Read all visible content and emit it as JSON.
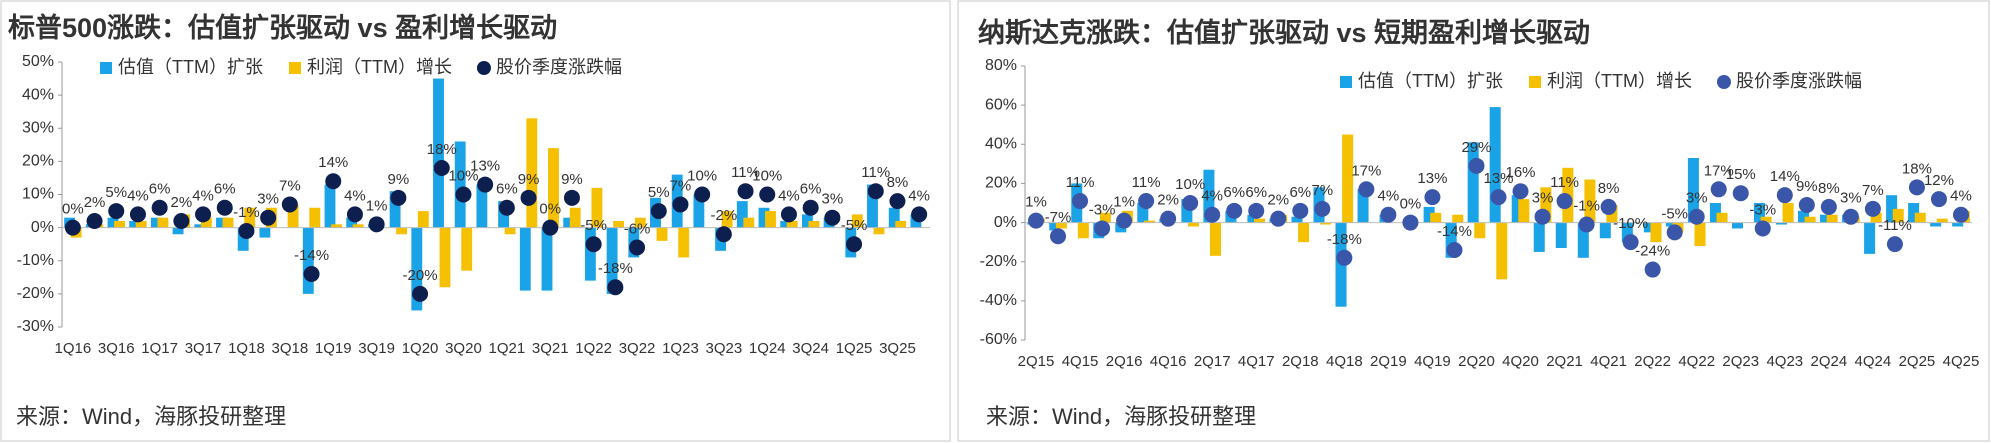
{
  "chart_data": [
    {
      "type": "bar",
      "title": "标普500涨跌：估值扩张驱动 vs 盈利增长驱动",
      "source": "来源：Wind，海豚投研整理",
      "categories": [
        "1Q16",
        null,
        "3Q16",
        null,
        "1Q17",
        null,
        "3Q17",
        null,
        "1Q18",
        null,
        "3Q18",
        null,
        "1Q19",
        null,
        "3Q19",
        null,
        "1Q20",
        null,
        "3Q20",
        null,
        "1Q21",
        null,
        "3Q21",
        null,
        "1Q22",
        null,
        "3Q22",
        null,
        "1Q23",
        null,
        "3Q23",
        null,
        "1Q24",
        null,
        "3Q24",
        null,
        "1Q25",
        null,
        "3Q25",
        null
      ],
      "ylim": [
        -30,
        50
      ],
      "yticks": [
        {
          "value": -30,
          "label": "-30%"
        },
        {
          "value": -20,
          "label": "-20%"
        },
        {
          "value": -10,
          "label": "-10%"
        },
        {
          "value": 0,
          "label": "0%"
        },
        {
          "value": 10,
          "label": "10%"
        },
        {
          "value": 20,
          "label": "20%"
        },
        {
          "value": 30,
          "label": "30%"
        },
        {
          "value": 40,
          "label": "40%"
        },
        {
          "value": 50,
          "label": "50%"
        }
      ],
      "series": [
        {
          "name": "估值（TTM）扩张",
          "type": "bar",
          "color": "#1aa3e6",
          "values": [
            3,
            1,
            3,
            2,
            3,
            -2,
            1,
            3,
            -7,
            -3,
            0,
            -20,
            13,
            3,
            1,
            11,
            -25,
            45,
            26,
            13,
            8,
            -19,
            -19,
            3,
            -16,
            -20,
            -9,
            9,
            16,
            10,
            -7,
            8,
            6,
            2,
            4,
            3,
            -9,
            13,
            6,
            4
          ]
        },
        {
          "name": "利润（TTM）增长",
          "type": "bar",
          "color": "#f5c000",
          "values": [
            -3,
            1,
            2,
            2,
            3,
            4,
            3,
            3,
            6,
            6,
            7,
            6,
            1,
            1,
            0,
            -2,
            5,
            -18,
            -13,
            0,
            -2,
            33,
            24,
            6,
            12,
            2,
            3,
            -4,
            -9,
            0,
            5,
            3,
            5,
            2,
            2,
            0,
            4,
            -2,
            2,
            0
          ]
        },
        {
          "name": "股价季度涨跌幅",
          "type": "dot",
          "color": "#0d1f4f",
          "values": [
            0,
            2,
            5,
            4,
            6,
            2,
            4,
            6,
            -1,
            3,
            7,
            -14,
            14,
            4,
            1,
            9,
            -20,
            18,
            10,
            13,
            6,
            9,
            0,
            9,
            -5,
            -18,
            -6,
            5,
            7,
            10,
            -2,
            11,
            10,
            4,
            6,
            3,
            -5,
            11,
            8,
            4
          ],
          "value_labels": [
            "0%",
            "2%",
            "5%",
            "4%",
            "6%",
            "2%",
            "4%",
            "6%",
            "-1%",
            "3%",
            "7%",
            "-14%",
            "14%",
            "4%",
            "1%",
            "9%",
            "-20%",
            "18%",
            "10%",
            "13%",
            "6%",
            "9%",
            "0%",
            "9%",
            "-5%",
            "-18%",
            "-6%",
            "5%",
            "7%",
            "10%",
            "-2%",
            "11%",
            "10%",
            "4%",
            "6%",
            "3%",
            "-5%",
            "11%",
            "8%",
            "4%"
          ]
        }
      ]
    },
    {
      "type": "bar",
      "title": "纳斯达克涨跌：估值扩张驱动 vs 短期盈利增长驱动",
      "source": "来源：Wind，海豚投研整理",
      "categories": [
        "2Q15",
        null,
        "4Q15",
        null,
        "2Q16",
        null,
        "4Q16",
        null,
        "2Q17",
        null,
        "4Q17",
        null,
        "2Q18",
        null,
        "4Q18",
        null,
        "2Q19",
        null,
        "4Q19",
        null,
        "2Q20",
        null,
        "4Q20",
        null,
        "2Q21",
        null,
        "4Q21",
        null,
        "2Q22",
        null,
        "4Q22",
        null,
        "2Q23",
        null,
        "4Q23",
        null,
        "2Q24",
        null,
        "4Q24",
        null,
        "2Q25",
        null,
        "4Q25"
      ],
      "ylim": [
        -60,
        80
      ],
      "yticks": [
        {
          "value": -60,
          "label": "-60%"
        },
        {
          "value": -40,
          "label": "-40%"
        },
        {
          "value": -20,
          "label": "-20%"
        },
        {
          "value": 0,
          "label": "0%"
        },
        {
          "value": 20,
          "label": "20%"
        },
        {
          "value": 40,
          "label": "40%"
        },
        {
          "value": 60,
          "label": "60%"
        },
        {
          "value": 80,
          "label": "80%"
        }
      ],
      "series": [
        {
          "name": "估值（TTM）扩张",
          "type": "bar",
          "color": "#1aa3e6",
          "values": [
            -1,
            -4,
            20,
            -8,
            -5,
            10,
            2,
            12,
            27,
            6,
            4,
            2,
            3,
            18,
            -43,
            17,
            4,
            0,
            8,
            -18,
            41,
            59,
            14,
            -15,
            -13,
            -18,
            -8,
            -10,
            -5,
            -2,
            33,
            10,
            -3,
            10,
            -1,
            6,
            4,
            4,
            -16,
            14,
            10,
            -2,
            -2
          ]
        },
        {
          "name": "利润（TTM）增长",
          "type": "bar",
          "color": "#f5c000",
          "values": [
            2,
            -3,
            -8,
            5,
            6,
            1,
            0,
            -2,
            -17,
            0,
            2,
            4,
            -10,
            -1,
            45,
            0,
            0,
            0,
            5,
            4,
            -8,
            -29,
            12,
            18,
            28,
            22,
            9,
            0,
            -10,
            -5,
            -12,
            5,
            0,
            3,
            10,
            3,
            4,
            3,
            5,
            7,
            5,
            2,
            6
          ]
        },
        {
          "name": "股价季度涨跌幅",
          "type": "dot",
          "color": "#3a56a8",
          "values": [
            1,
            -7,
            11,
            -3,
            1,
            11,
            2,
            10,
            4,
            6,
            6,
            2,
            6,
            7,
            -18,
            17,
            4,
            0,
            13,
            -14,
            29,
            13,
            16,
            3,
            11,
            -1,
            8,
            -10,
            -24,
            -5,
            3,
            17,
            15,
            -3,
            14,
            9,
            8,
            3,
            7,
            -11,
            18,
            12,
            4
          ],
          "value_labels": [
            "1%",
            "-7%",
            "11%",
            "-3%",
            "1%",
            "11%",
            "2%",
            "10%",
            "4%",
            "6%",
            "6%",
            "2%",
            "6%",
            "7%",
            "-18%",
            "17%",
            "4%",
            "0%",
            "13%",
            "-14%",
            "29%",
            "13%",
            "16%",
            "3%",
            "11%",
            "-1%",
            "8%",
            "-10%",
            "-24%",
            "-5%",
            "3%",
            "17%",
            "15%",
            "-3%",
            "14%",
            "9%",
            "8%",
            "3%",
            "7%",
            "-11%",
            "18%",
            "12%",
            "4%"
          ]
        }
      ]
    }
  ]
}
